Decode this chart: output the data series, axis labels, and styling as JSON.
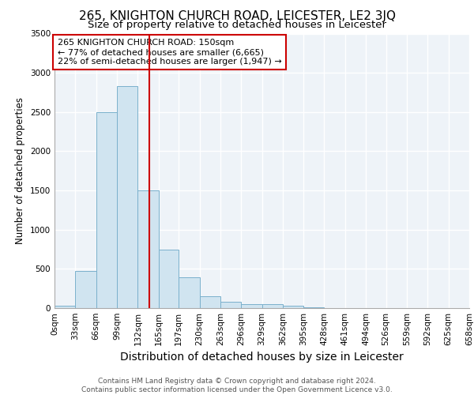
{
  "title": "265, KNIGHTON CHURCH ROAD, LEICESTER, LE2 3JQ",
  "subtitle": "Size of property relative to detached houses in Leicester",
  "xlabel": "Distribution of detached houses by size in Leicester",
  "ylabel": "Number of detached properties",
  "bin_edges": [
    0,
    33,
    66,
    99,
    132,
    165,
    197,
    230,
    263,
    296,
    329,
    362,
    395,
    428,
    461,
    494,
    526,
    559,
    592,
    625,
    658
  ],
  "bar_heights": [
    30,
    470,
    2500,
    2830,
    1500,
    750,
    390,
    150,
    80,
    55,
    55,
    30,
    15,
    5,
    2,
    2,
    2,
    2,
    2,
    2
  ],
  "bar_color": "#d0e4f0",
  "bar_edge_color": "#7ab0cc",
  "vline_x": 150,
  "vline_color": "#cc0000",
  "annotation_text": "265 KNIGHTON CHURCH ROAD: 150sqm\n← 77% of detached houses are smaller (6,665)\n22% of semi-detached houses are larger (1,947) →",
  "annotation_box_color": "#cc0000",
  "annotation_bg": "#ffffff",
  "ylim": [
    0,
    3500
  ],
  "yticks": [
    0,
    500,
    1000,
    1500,
    2000,
    2500,
    3000,
    3500
  ],
  "footer_text": "Contains HM Land Registry data © Crown copyright and database right 2024.\nContains public sector information licensed under the Open Government Licence v3.0.",
  "bg_color": "#eef3f8",
  "grid_color": "#ffffff",
  "title_fontsize": 11,
  "subtitle_fontsize": 9.5,
  "xlabel_fontsize": 10,
  "ylabel_fontsize": 8.5,
  "tick_fontsize": 7.5,
  "annotation_fontsize": 8,
  "footer_fontsize": 6.5
}
